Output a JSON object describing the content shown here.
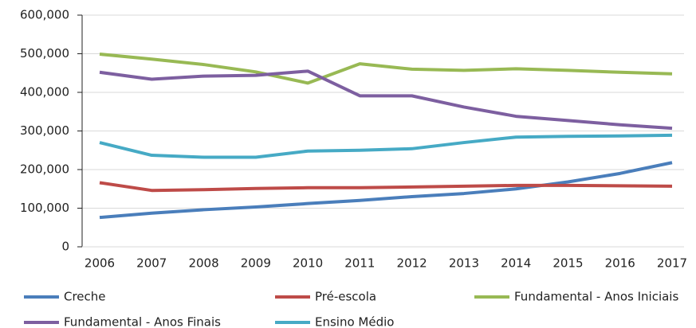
{
  "chart_data": {
    "type": "line",
    "categories": [
      "2006",
      "2007",
      "2008",
      "2009",
      "2010",
      "2011",
      "2012",
      "2013",
      "2014",
      "2015",
      "2016",
      "2017"
    ],
    "series": [
      {
        "name": "Creche",
        "color": "#4a7ebb",
        "values": [
          76000,
          87000,
          96000,
          103000,
          112000,
          120000,
          130000,
          138000,
          150000,
          168000,
          190000,
          218000
        ]
      },
      {
        "name": "Pré-escola",
        "color": "#be4b48",
        "values": [
          166000,
          146000,
          148000,
          151000,
          153000,
          153000,
          155000,
          157000,
          159000,
          159000,
          158000,
          157000
        ]
      },
      {
        "name": "Fundamental - Anos Iniciais",
        "color": "#98b954",
        "values": [
          499000,
          486000,
          472000,
          453000,
          424000,
          474000,
          460000,
          457000,
          461000,
          457000,
          452000,
          448000
        ]
      },
      {
        "name": "Fundamental - Anos Finais",
        "color": "#7d5fa0",
        "values": [
          452000,
          434000,
          442000,
          444000,
          455000,
          391000,
          391000,
          362000,
          338000,
          327000,
          316000,
          307000
        ]
      },
      {
        "name": "Ensino Médio",
        "color": "#46aac5",
        "values": [
          270000,
          237000,
          232000,
          232000,
          248000,
          250000,
          254000,
          270000,
          284000,
          286000,
          287000,
          289000
        ]
      }
    ],
    "ylim": [
      0,
      600000
    ],
    "yticks": [
      0,
      {
        "value": 100000,
        "label": "100,000"
      },
      {
        "value": 200000,
        "label": "200,000"
      },
      {
        "value": 300000,
        "label": "300,000"
      },
      {
        "value": 400000,
        "label": "400,000"
      },
      {
        "value": 500000,
        "label": "500,000"
      },
      {
        "value": 600000,
        "label": "600,000"
      }
    ],
    "grid": true,
    "legend": "bottom"
  }
}
